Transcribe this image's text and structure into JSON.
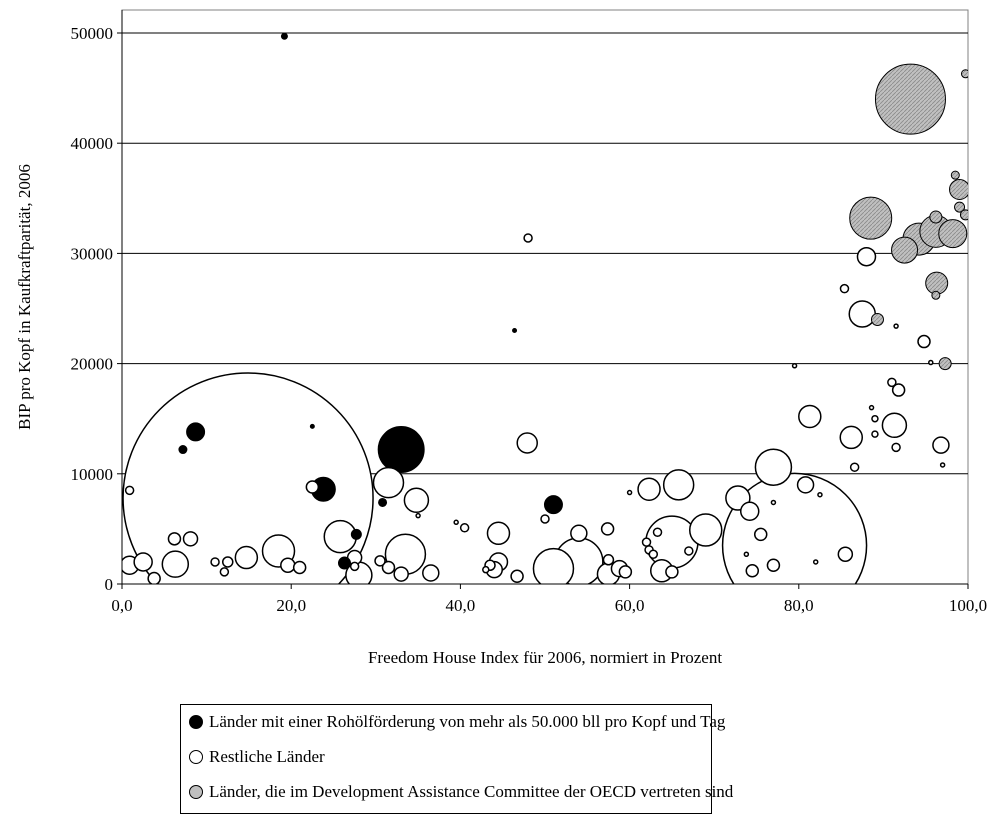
{
  "chart_data": {
    "type": "scatter",
    "xlabel": "Freedom House Index für 2006, normiert in Prozent",
    "ylabel": "BIP pro Kopf in Kaufkraftparität, 2006",
    "xlim": [
      0,
      100
    ],
    "ylim": [
      0,
      52000
    ],
    "xticks": [
      "0,0",
      "20,0",
      "40,0",
      "60,0",
      "80,0",
      "100,0"
    ],
    "yticks": [
      "0",
      "10000",
      "20000",
      "30000",
      "40000",
      "50000"
    ],
    "grid": "horizontal",
    "legend_position": "bottom",
    "colors": {
      "oil": "#000000",
      "rest": "#ffffff",
      "dac": "#c0c0c0"
    },
    "series": [
      {
        "name": "Länder mit einer Rohölförderung von mehr als 50.000 bll pro Kopf und Tag",
        "color": "#000000",
        "points": [
          {
            "x": 19.2,
            "y": 49700,
            "r": 3
          },
          {
            "x": 8.7,
            "y": 13800,
            "r": 9
          },
          {
            "x": 7.2,
            "y": 12200,
            "r": 4
          },
          {
            "x": 22.5,
            "y": 14300,
            "r": 2
          },
          {
            "x": 23.8,
            "y": 8600,
            "r": 12
          },
          {
            "x": 26.3,
            "y": 1900,
            "r": 6
          },
          {
            "x": 30.8,
            "y": 7400,
            "r": 4
          },
          {
            "x": 33.0,
            "y": 12200,
            "r": 23
          },
          {
            "x": 46.4,
            "y": 23000,
            "r": 2
          },
          {
            "x": 51.0,
            "y": 7200,
            "r": 9
          },
          {
            "x": 27.7,
            "y": 4500,
            "r": 5
          }
        ]
      },
      {
        "name": "Restliche Länder",
        "color": "#ffffff",
        "points": [
          {
            "x": 14.9,
            "y": 7800,
            "r": 125
          },
          {
            "x": 79.5,
            "y": 3500,
            "r": 72
          },
          {
            "x": 33.5,
            "y": 2700,
            "r": 20
          },
          {
            "x": 77.0,
            "y": 10600,
            "r": 18
          },
          {
            "x": 54.0,
            "y": 2000,
            "r": 24
          },
          {
            "x": 51.0,
            "y": 1400,
            "r": 20
          },
          {
            "x": 65.0,
            "y": 3800,
            "r": 26
          },
          {
            "x": 69.0,
            "y": 4900,
            "r": 16
          },
          {
            "x": 18.5,
            "y": 3000,
            "r": 16
          },
          {
            "x": 25.8,
            "y": 4300,
            "r": 16
          },
          {
            "x": 6.3,
            "y": 1800,
            "r": 13
          },
          {
            "x": 14.7,
            "y": 2400,
            "r": 11
          },
          {
            "x": 0.9,
            "y": 1700,
            "r": 9
          },
          {
            "x": 2.5,
            "y": 2000,
            "r": 9
          },
          {
            "x": 3.8,
            "y": 500,
            "r": 6
          },
          {
            "x": 0.9,
            "y": 8500,
            "r": 4
          },
          {
            "x": 6.2,
            "y": 4100,
            "r": 6
          },
          {
            "x": 8.1,
            "y": 4100,
            "r": 7
          },
          {
            "x": 11.0,
            "y": 2000,
            "r": 4
          },
          {
            "x": 12.5,
            "y": 2000,
            "r": 5
          },
          {
            "x": 12.1,
            "y": 1100,
            "r": 4
          },
          {
            "x": 19.6,
            "y": 1700,
            "r": 7
          },
          {
            "x": 21.0,
            "y": 1500,
            "r": 6
          },
          {
            "x": 22.5,
            "y": 8800,
            "r": 6
          },
          {
            "x": 27.5,
            "y": 2400,
            "r": 7
          },
          {
            "x": 27.5,
            "y": 1600,
            "r": 4
          },
          {
            "x": 28.0,
            "y": 800,
            "r": 13
          },
          {
            "x": 30.5,
            "y": 2100,
            "r": 5
          },
          {
            "x": 31.5,
            "y": 9200,
            "r": 15
          },
          {
            "x": 31.5,
            "y": 1500,
            "r": 6
          },
          {
            "x": 33.0,
            "y": 900,
            "r": 7
          },
          {
            "x": 34.8,
            "y": 7600,
            "r": 12
          },
          {
            "x": 36.5,
            "y": 1000,
            "r": 8
          },
          {
            "x": 35.0,
            "y": 6200,
            "r": 2
          },
          {
            "x": 40.5,
            "y": 5100,
            "r": 4
          },
          {
            "x": 39.5,
            "y": 5600,
            "r": 2
          },
          {
            "x": 44.5,
            "y": 4600,
            "r": 11
          },
          {
            "x": 44.5,
            "y": 2000,
            "r": 9
          },
          {
            "x": 44.0,
            "y": 1300,
            "r": 8
          },
          {
            "x": 43.5,
            "y": 1700,
            "r": 5
          },
          {
            "x": 43.0,
            "y": 1300,
            "r": 3
          },
          {
            "x": 46.7,
            "y": 700,
            "r": 6
          },
          {
            "x": 47.9,
            "y": 12800,
            "r": 10
          },
          {
            "x": 48.0,
            "y": 31400,
            "r": 4
          },
          {
            "x": 50.0,
            "y": 5900,
            "r": 4
          },
          {
            "x": 54.0,
            "y": 4600,
            "r": 8
          },
          {
            "x": 57.4,
            "y": 5000,
            "r": 6
          },
          {
            "x": 57.5,
            "y": 2200,
            "r": 5
          },
          {
            "x": 57.5,
            "y": 900,
            "r": 11
          },
          {
            "x": 58.8,
            "y": 1400,
            "r": 8
          },
          {
            "x": 59.5,
            "y": 1100,
            "r": 6
          },
          {
            "x": 60.0,
            "y": 8300,
            "r": 2
          },
          {
            "x": 62.0,
            "y": 3800,
            "r": 4
          },
          {
            "x": 62.3,
            "y": 3100,
            "r": 4
          },
          {
            "x": 62.8,
            "y": 2700,
            "r": 4
          },
          {
            "x": 63.3,
            "y": 4700,
            "r": 4
          },
          {
            "x": 62.3,
            "y": 8600,
            "r": 11
          },
          {
            "x": 63.8,
            "y": 1200,
            "r": 11
          },
          {
            "x": 65.8,
            "y": 9000,
            "r": 15
          },
          {
            "x": 65.0,
            "y": 1100,
            "r": 6
          },
          {
            "x": 67.0,
            "y": 3000,
            "r": 4
          },
          {
            "x": 72.8,
            "y": 7800,
            "r": 12
          },
          {
            "x": 74.2,
            "y": 6600,
            "r": 9
          },
          {
            "x": 74.5,
            "y": 1200,
            "r": 6
          },
          {
            "x": 75.5,
            "y": 4500,
            "r": 6
          },
          {
            "x": 73.8,
            "y": 2700,
            "r": 2
          },
          {
            "x": 77.0,
            "y": 1700,
            "r": 6
          },
          {
            "x": 77.0,
            "y": 7400,
            "r": 2
          },
          {
            "x": 79.5,
            "y": 19800,
            "r": 2
          },
          {
            "x": 81.3,
            "y": 15200,
            "r": 11
          },
          {
            "x": 80.8,
            "y": 9000,
            "r": 8
          },
          {
            "x": 82.5,
            "y": 8100,
            "r": 2
          },
          {
            "x": 82.0,
            "y": 2000,
            "r": 2
          },
          {
            "x": 85.5,
            "y": 2700,
            "r": 7
          },
          {
            "x": 85.4,
            "y": 26800,
            "r": 4
          },
          {
            "x": 86.2,
            "y": 13300,
            "r": 11
          },
          {
            "x": 86.6,
            "y": 10600,
            "r": 4
          },
          {
            "x": 87.5,
            "y": 24500,
            "r": 13
          },
          {
            "x": 88.0,
            "y": 29700,
            "r": 9
          },
          {
            "x": 88.6,
            "y": 16000,
            "r": 2
          },
          {
            "x": 89.0,
            "y": 15000,
            "r": 3
          },
          {
            "x": 89.0,
            "y": 13600,
            "r": 3
          },
          {
            "x": 91.0,
            "y": 18300,
            "r": 4
          },
          {
            "x": 91.8,
            "y": 17600,
            "r": 6
          },
          {
            "x": 91.3,
            "y": 14400,
            "r": 12
          },
          {
            "x": 91.5,
            "y": 12400,
            "r": 4
          },
          {
            "x": 94.8,
            "y": 22000,
            "r": 6
          },
          {
            "x": 95.6,
            "y": 20100,
            "r": 2
          },
          {
            "x": 96.8,
            "y": 12600,
            "r": 8
          },
          {
            "x": 97.0,
            "y": 10800,
            "r": 2
          },
          {
            "x": 91.5,
            "y": 23400,
            "r": 2
          }
        ]
      },
      {
        "name": "Länder, die im Development Assistance Committee der OECD vertreten sind",
        "color": "#c0c0c0",
        "points": [
          {
            "x": 93.2,
            "y": 44000,
            "r": 35
          },
          {
            "x": 88.5,
            "y": 33200,
            "r": 21
          },
          {
            "x": 92.5,
            "y": 30300,
            "r": 13
          },
          {
            "x": 94.2,
            "y": 31300,
            "r": 16
          },
          {
            "x": 96.2,
            "y": 32000,
            "r": 16
          },
          {
            "x": 98.2,
            "y": 31800,
            "r": 14
          },
          {
            "x": 96.2,
            "y": 33300,
            "r": 6
          },
          {
            "x": 99.0,
            "y": 35800,
            "r": 10
          },
          {
            "x": 98.5,
            "y": 37100,
            "r": 4
          },
          {
            "x": 99.0,
            "y": 34200,
            "r": 5
          },
          {
            "x": 96.3,
            "y": 27300,
            "r": 11
          },
          {
            "x": 96.2,
            "y": 26200,
            "r": 4
          },
          {
            "x": 89.3,
            "y": 24000,
            "r": 6
          },
          {
            "x": 97.3,
            "y": 20000,
            "r": 6
          },
          {
            "x": 99.7,
            "y": 46300,
            "r": 4
          },
          {
            "x": 99.7,
            "y": 33500,
            "r": 5
          }
        ]
      }
    ],
    "legend": [
      {
        "label": "Länder mit einer Rohölförderung von mehr als 50.000 bll pro Kopf und Tag",
        "color": "#000000"
      },
      {
        "label": "Restliche Länder",
        "color": "#ffffff"
      },
      {
        "label": "Länder, die im Development Assistance Committee der OECD vertreten sind",
        "color": "#c0c0c0"
      }
    ]
  }
}
